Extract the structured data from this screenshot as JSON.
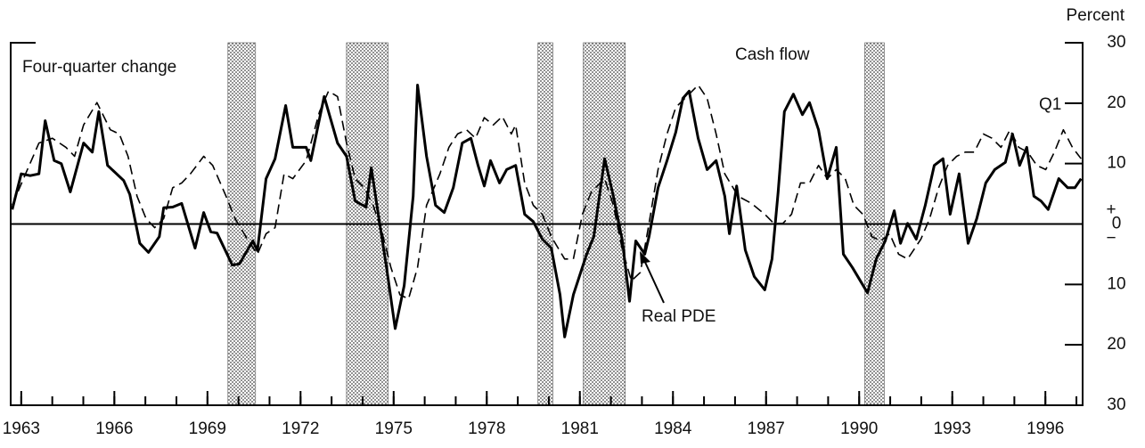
{
  "chart_data": {
    "type": "line",
    "y_axis_label": "Percent",
    "annotations": {
      "subtitle": "Four-quarter change",
      "cash_flow": "Cash flow",
      "real_pde": "Real PDE",
      "q1": "Q1"
    },
    "zero_signs": [
      "+",
      "−"
    ],
    "xlim": [
      1962.66,
      1997.2
    ],
    "ylim": [
      -30,
      30
    ],
    "xticks": [
      1963,
      1966,
      1969,
      1972,
      1975,
      1978,
      1981,
      1984,
      1987,
      1990,
      1993,
      1996
    ],
    "xminor": [
      1963,
      1964,
      1965,
      1966,
      1967,
      1968,
      1969,
      1970,
      1971,
      1972,
      1973,
      1974,
      1975,
      1976,
      1977,
      1978,
      1979,
      1980,
      1981,
      1982,
      1983,
      1984,
      1985,
      1986,
      1987,
      1988,
      1989,
      1990,
      1991,
      1992,
      1993,
      1994,
      1995,
      1996,
      1997
    ],
    "yticks": [
      30,
      20,
      {
        "value": 10,
        "label": "10"
      },
      0,
      {
        "value": -10,
        "label": "10"
      },
      {
        "value": -20,
        "label": "20"
      },
      {
        "value": -30,
        "label": "30"
      }
    ],
    "recessions": [
      [
        1969.66,
        1970.55
      ],
      [
        1973.48,
        1974.82
      ],
      [
        1979.65,
        1980.13
      ],
      [
        1981.11,
        1982.46
      ],
      [
        1990.18,
        1990.81
      ]
    ],
    "series": [
      {
        "name": "Cash flow",
        "color": "#000000",
        "style": "solid",
        "x": [
          1962.71,
          1963.0,
          1963.29,
          1963.57,
          1963.77,
          1964.06,
          1964.29,
          1964.58,
          1965.01,
          1965.29,
          1965.5,
          1965.78,
          1966.3,
          1966.5,
          1966.82,
          1967.1,
          1967.45,
          1967.59,
          1967.88,
          1968.17,
          1968.6,
          1968.88,
          1969.11,
          1969.31,
          1969.8,
          1970.03,
          1970.46,
          1970.61,
          1970.89,
          1971.18,
          1971.52,
          1971.75,
          1972.18,
          1972.33,
          1972.76,
          1973.19,
          1973.48,
          1973.76,
          1974.11,
          1974.28,
          1974.48,
          1974.77,
          1975.05,
          1975.34,
          1975.63,
          1975.77,
          1976.06,
          1976.35,
          1976.63,
          1976.92,
          1977.21,
          1977.49,
          1977.72,
          1977.92,
          1978.12,
          1978.41,
          1978.64,
          1978.93,
          1979.22,
          1979.5,
          1979.79,
          1980.08,
          1980.36,
          1980.51,
          1980.79,
          1981.22,
          1981.45,
          1981.8,
          1982.08,
          1982.37,
          1982.6,
          1982.8,
          1983.09,
          1983.23,
          1983.52,
          1983.81,
          1984.09,
          1984.32,
          1984.52,
          1984.81,
          1985.1,
          1985.39,
          1985.67,
          1985.82,
          1986.05,
          1986.33,
          1986.62,
          1986.96,
          1987.19,
          1987.39,
          1987.59,
          1987.88,
          1988.17,
          1988.4,
          1988.69,
          1988.97,
          1989.26,
          1989.49,
          1989.78,
          1990.27,
          1990.55,
          1990.84,
          1991.13,
          1991.33,
          1991.56,
          1991.84,
          1992.13,
          1992.42,
          1992.7,
          1992.93,
          1993.22,
          1993.51,
          1993.79,
          1994.08,
          1994.37,
          1994.71,
          1994.94,
          1995.17,
          1995.4,
          1995.63,
          1995.86,
          1996.09,
          1996.43,
          1996.72,
          1996.95,
          1997.15
        ],
        "values": [
          2.4,
          8.3,
          8.0,
          8.3,
          17.1,
          10.5,
          10.0,
          5.3,
          13.4,
          11.9,
          18.6,
          9.7,
          7.2,
          4.9,
          -3.2,
          -4.7,
          -2.1,
          2.7,
          2.8,
          3.4,
          -4.0,
          1.9,
          -1.3,
          -1.5,
          -6.8,
          -6.6,
          -2.8,
          -4.4,
          7.5,
          10.8,
          19.6,
          12.7,
          12.7,
          10.5,
          21.1,
          13.4,
          11.2,
          3.8,
          2.8,
          9.3,
          2.4,
          -7.2,
          -17.3,
          -10.2,
          4.6,
          23.0,
          11.2,
          3.1,
          1.9,
          6.0,
          13.4,
          14.2,
          9.7,
          6.3,
          10.5,
          6.8,
          9.0,
          9.7,
          1.6,
          0.4,
          -2.5,
          -4.0,
          -11.7,
          -18.7,
          -11.7,
          -5.0,
          -2.1,
          10.8,
          4.6,
          -2.8,
          -12.8,
          -2.8,
          -5.0,
          -2.1,
          6.0,
          10.5,
          15.2,
          20.8,
          22.0,
          14.2,
          9.0,
          10.5,
          4.6,
          -1.6,
          6.3,
          -4.3,
          -8.7,
          -10.9,
          -5.8,
          5.3,
          18.6,
          21.5,
          18.1,
          20.1,
          15.6,
          7.5,
          12.7,
          -5.0,
          -7.2,
          -11.4,
          -5.8,
          -2.8,
          2.2,
          -3.2,
          0.1,
          -2.5,
          3.1,
          9.7,
          10.8,
          1.6,
          8.3,
          -3.2,
          0.9,
          6.8,
          9.0,
          10.2,
          14.9,
          9.7,
          12.7,
          4.6,
          3.8,
          2.4,
          7.5,
          6.0,
          6.0,
          7.5
        ]
      },
      {
        "name": "Real PDE",
        "color": "#000000",
        "style": "dashed",
        "x": [
          1962.71,
          1963.14,
          1963.57,
          1964.0,
          1964.44,
          1964.72,
          1965.01,
          1965.44,
          1965.87,
          1966.16,
          1966.44,
          1966.73,
          1967.02,
          1967.3,
          1967.59,
          1967.88,
          1968.17,
          1968.45,
          1968.88,
          1969.17,
          1969.6,
          1969.89,
          1970.32,
          1970.61,
          1970.89,
          1971.18,
          1971.47,
          1971.75,
          1972.18,
          1972.61,
          1972.9,
          1973.19,
          1973.48,
          1973.76,
          1974.05,
          1974.34,
          1974.62,
          1974.91,
          1975.2,
          1975.48,
          1975.77,
          1976.06,
          1976.49,
          1976.78,
          1977.06,
          1977.35,
          1977.64,
          1977.92,
          1978.21,
          1978.5,
          1978.79,
          1978.93,
          1979.22,
          1979.5,
          1979.79,
          1980.08,
          1980.51,
          1980.79,
          1981.08,
          1981.37,
          1981.8,
          1982.08,
          1982.37,
          1982.66,
          1982.95,
          1983.23,
          1983.52,
          1983.81,
          1984.09,
          1984.52,
          1984.81,
          1985.1,
          1985.39,
          1985.67,
          1986.1,
          1986.53,
          1986.96,
          1987.25,
          1987.54,
          1987.82,
          1988.11,
          1988.4,
          1988.69,
          1988.97,
          1989.26,
          1989.55,
          1989.83,
          1990.12,
          1990.41,
          1990.7,
          1990.98,
          1991.27,
          1991.56,
          1991.99,
          1992.27,
          1992.56,
          1992.85,
          1993.14,
          1993.42,
          1993.71,
          1994.0,
          1994.28,
          1994.57,
          1994.86,
          1995.14,
          1995.43,
          1995.72,
          1996.01,
          1996.29,
          1996.58,
          1996.87,
          1997.15
        ],
        "values": [
          3.1,
          8.3,
          13.4,
          14.2,
          12.7,
          11.2,
          16.4,
          20.1,
          15.6,
          14.9,
          11.2,
          4.6,
          0.9,
          -0.6,
          0.9,
          6.0,
          6.8,
          8.3,
          11.2,
          9.7,
          4.6,
          0.9,
          -2.8,
          -5.0,
          -1.6,
          -0.6,
          8.3,
          7.5,
          10.5,
          18.6,
          22.0,
          21.1,
          13.4,
          7.5,
          6.0,
          3.1,
          -1.3,
          -7.2,
          -11.7,
          -12.4,
          -7.2,
          3.1,
          8.3,
          12.7,
          14.9,
          15.6,
          14.2,
          17.6,
          16.4,
          17.8,
          14.9,
          16.4,
          6.8,
          3.1,
          1.6,
          -2.1,
          -5.8,
          -5.8,
          1.6,
          5.3,
          7.5,
          3.1,
          -4.3,
          -9.4,
          -8.0,
          0.1,
          9.0,
          14.9,
          19.3,
          21.5,
          23.0,
          20.8,
          14.9,
          8.3,
          4.6,
          3.4,
          1.6,
          0.1,
          0.1,
          1.6,
          6.8,
          6.8,
          9.7,
          7.5,
          9.0,
          7.5,
          3.1,
          1.6,
          -2.1,
          -2.8,
          -1.6,
          -5.0,
          -5.8,
          -2.5,
          0.9,
          6.0,
          9.7,
          11.2,
          11.9,
          11.9,
          14.9,
          14.2,
          12.7,
          15.6,
          12.7,
          11.9,
          9.7,
          9.0,
          11.9,
          15.6,
          12.7,
          10.8
        ]
      }
    ]
  }
}
